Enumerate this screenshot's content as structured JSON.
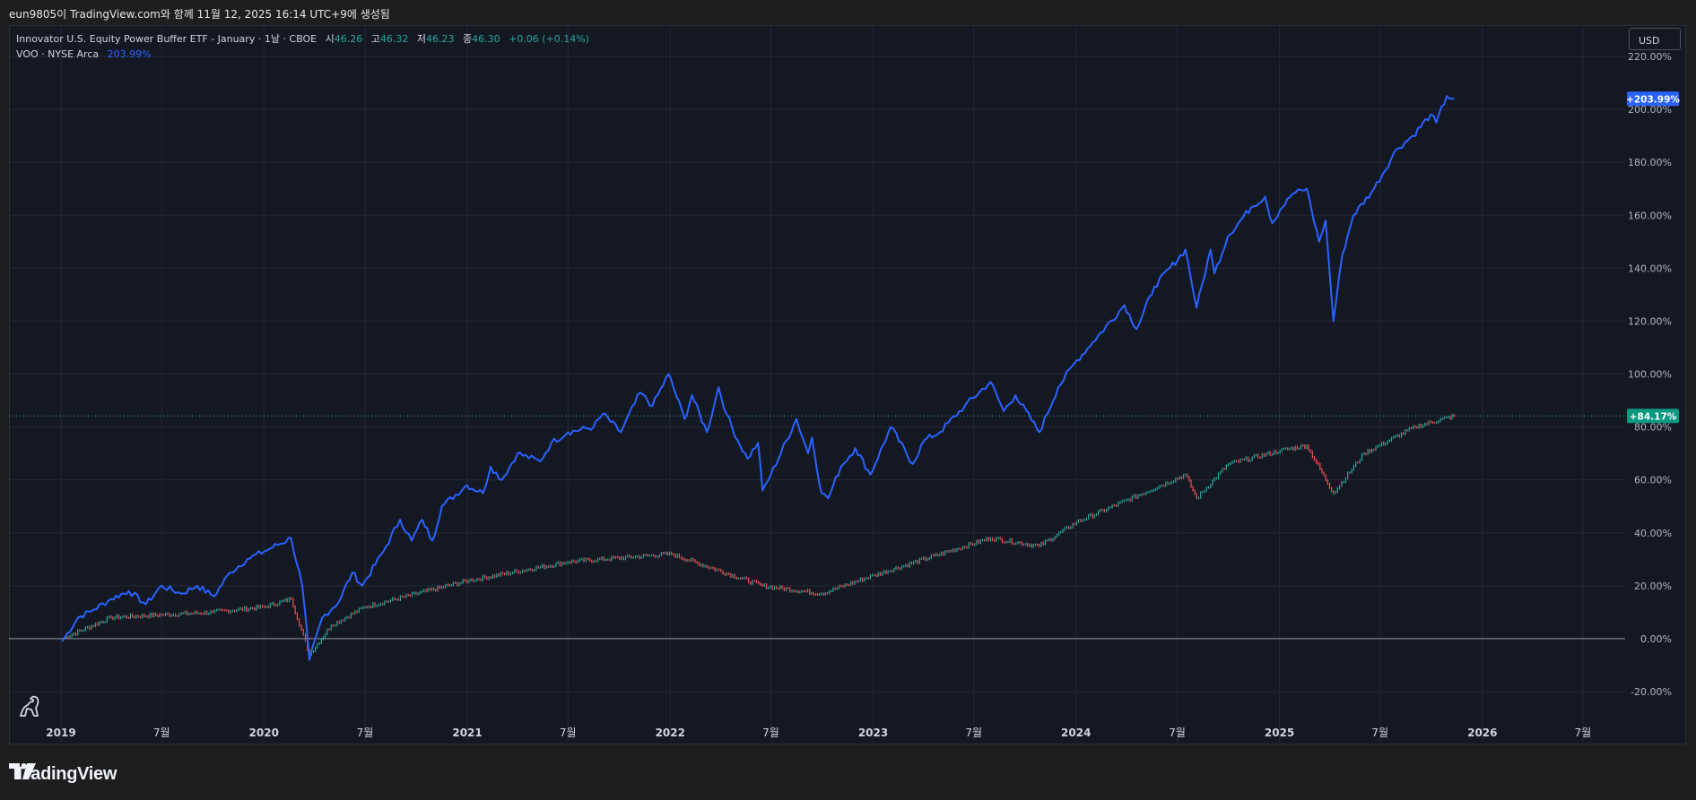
{
  "header": {
    "text": "eun9805이 TradingView.com와 함께 11월 12, 2025 16:14 UTC+9에 생성됨"
  },
  "legend": {
    "main_name": "Innovator U.S. Equity Power Buffer ETF - January · 1날 · CBOE",
    "o_label": "시",
    "o_value": "46.26",
    "h_label": "고",
    "h_value": "46.32",
    "l_label": "저",
    "l_value": "46.23",
    "c_label": "종",
    "c_value": "46.30",
    "change": "+0.06 (+0.14%)",
    "compare_name": "VOO · NYSE Arca",
    "compare_value": "203.99%"
  },
  "currency_button": "USD",
  "brand": "TradingView",
  "icons": {
    "brand_logo": "tradingview-logo-icon",
    "mascot": "dinosaur-icon"
  },
  "colors": {
    "background": "#141823",
    "compare_line": "#2962ff",
    "up": "#26a69a",
    "down": "#ef5350",
    "grid": "#232734",
    "zero_line": "#9598a1"
  },
  "chart_data": {
    "type": "line",
    "y_unit": "%",
    "ylim": [
      -20,
      220
    ],
    "y_ticks": [
      "220.00%",
      "200.00%",
      "180.00%",
      "160.00%",
      "140.00%",
      "120.00%",
      "100.00%",
      "80.00%",
      "60.00%",
      "40.00%",
      "20.00%",
      "0.00%",
      "-20.00%"
    ],
    "x_ticks": [
      "2019",
      "7월",
      "2020",
      "7월",
      "2021",
      "7월",
      "2022",
      "7월",
      "2023",
      "7월",
      "2024",
      "7월",
      "2025",
      "7월",
      "2026",
      "7월"
    ],
    "x_tick_dates": [
      "2019-01-01",
      "2019-07-01",
      "2020-01-01",
      "2020-07-01",
      "2021-01-01",
      "2021-07-01",
      "2022-01-01",
      "2022-07-01",
      "2023-01-01",
      "2023-07-01",
      "2024-01-01",
      "2024-07-01",
      "2025-01-01",
      "2025-07-01",
      "2026-01-01",
      "2026-07-01"
    ],
    "grid": true,
    "price_labels": [
      "+203.99%",
      "+84.17%"
    ],
    "series": [
      {
        "name": "VOO · NYSE Arca",
        "style": "line",
        "color": "#2962ff",
        "points": [
          [
            "2019-01-03",
            -1
          ],
          [
            "2019-02-01",
            8
          ],
          [
            "2019-03-01",
            11
          ],
          [
            "2019-04-01",
            15
          ],
          [
            "2019-05-03",
            18
          ],
          [
            "2019-06-03",
            13
          ],
          [
            "2019-07-01",
            20
          ],
          [
            "2019-08-05",
            17
          ],
          [
            "2019-09-03",
            20
          ],
          [
            "2019-10-03",
            16
          ],
          [
            "2019-11-01",
            25
          ],
          [
            "2019-12-02",
            30
          ],
          [
            "2020-01-02",
            33
          ],
          [
            "2020-02-19",
            38
          ],
          [
            "2020-03-10",
            20
          ],
          [
            "2020-03-23",
            -8
          ],
          [
            "2020-04-15",
            8
          ],
          [
            "2020-05-15",
            14
          ],
          [
            "2020-06-08",
            25
          ],
          [
            "2020-06-26",
            20
          ],
          [
            "2020-08-03",
            33
          ],
          [
            "2020-09-02",
            45
          ],
          [
            "2020-09-23",
            37
          ],
          [
            "2020-10-12",
            45
          ],
          [
            "2020-10-30",
            37
          ],
          [
            "2020-11-16",
            50
          ],
          [
            "2020-12-31",
            58
          ],
          [
            "2021-01-29",
            55
          ],
          [
            "2021-02-12",
            65
          ],
          [
            "2021-03-04",
            60
          ],
          [
            "2021-04-01",
            70
          ],
          [
            "2021-05-12",
            67
          ],
          [
            "2021-06-01",
            74
          ],
          [
            "2021-07-01",
            78
          ],
          [
            "2021-08-16",
            80
          ],
          [
            "2021-09-02",
            85
          ],
          [
            "2021-10-04",
            78
          ],
          [
            "2021-11-08",
            93
          ],
          [
            "2021-11-30",
            88
          ],
          [
            "2021-12-29",
            100
          ],
          [
            "2022-01-27",
            83
          ],
          [
            "2022-02-09",
            92
          ],
          [
            "2022-03-08",
            78
          ],
          [
            "2022-03-29",
            95
          ],
          [
            "2022-04-12",
            85
          ],
          [
            "2022-05-02",
            75
          ],
          [
            "2022-05-20",
            68
          ],
          [
            "2022-06-08",
            74
          ],
          [
            "2022-06-16",
            56
          ],
          [
            "2022-07-01",
            62
          ],
          [
            "2022-08-16",
            83
          ],
          [
            "2022-09-06",
            70
          ],
          [
            "2022-09-13",
            76
          ],
          [
            "2022-09-30",
            55
          ],
          [
            "2022-10-12",
            53
          ],
          [
            "2022-11-04",
            65
          ],
          [
            "2022-11-30",
            72
          ],
          [
            "2022-12-27",
            62
          ],
          [
            "2023-02-02",
            80
          ],
          [
            "2023-03-13",
            66
          ],
          [
            "2023-04-03",
            75
          ],
          [
            "2023-05-01",
            78
          ],
          [
            "2023-06-15",
            88
          ],
          [
            "2023-07-31",
            97
          ],
          [
            "2023-08-24",
            86
          ],
          [
            "2023-09-14",
            92
          ],
          [
            "2023-10-27",
            78
          ],
          [
            "2023-11-30",
            95
          ],
          [
            "2023-12-29",
            104
          ],
          [
            "2024-01-31",
            112
          ],
          [
            "2024-03-28",
            126
          ],
          [
            "2024-04-19",
            117
          ],
          [
            "2024-05-21",
            133
          ],
          [
            "2024-07-16",
            147
          ],
          [
            "2024-08-05",
            125
          ],
          [
            "2024-08-30",
            147
          ],
          [
            "2024-09-06",
            138
          ],
          [
            "2024-09-30",
            152
          ],
          [
            "2024-11-11",
            163
          ],
          [
            "2024-12-06",
            167
          ],
          [
            "2024-12-19",
            157
          ],
          [
            "2025-01-02",
            162
          ],
          [
            "2025-01-24",
            168
          ],
          [
            "2025-02-19",
            170
          ],
          [
            "2025-03-13",
            150
          ],
          [
            "2025-03-25",
            158
          ],
          [
            "2025-04-08",
            120
          ],
          [
            "2025-04-24",
            145
          ],
          [
            "2025-05-14",
            160
          ],
          [
            "2025-06-20",
            170
          ],
          [
            "2025-07-31",
            185
          ],
          [
            "2025-08-29",
            190
          ],
          [
            "2025-09-30",
            198
          ],
          [
            "2025-10-10",
            195
          ],
          [
            "2025-10-29",
            205
          ],
          [
            "2025-11-11",
            203.99
          ]
        ]
      },
      {
        "name": "Innovator U.S. Equity Power Buffer ETF - January",
        "style": "candles",
        "color": "#26a69a",
        "points": [
          [
            "2019-01-03",
            0
          ],
          [
            "2019-04-01",
            8
          ],
          [
            "2019-07-01",
            9
          ],
          [
            "2019-10-01",
            10
          ],
          [
            "2020-01-02",
            12
          ],
          [
            "2020-02-19",
            15
          ],
          [
            "2020-03-23",
            -6
          ],
          [
            "2020-05-01",
            5
          ],
          [
            "2020-07-01",
            12
          ],
          [
            "2021-01-04",
            22
          ],
          [
            "2021-07-01",
            29
          ],
          [
            "2022-01-03",
            32
          ],
          [
            "2022-06-16",
            20
          ],
          [
            "2022-09-30",
            17
          ],
          [
            "2023-01-03",
            24
          ],
          [
            "2023-07-31",
            38
          ],
          [
            "2023-10-27",
            35
          ],
          [
            "2024-01-02",
            44
          ],
          [
            "2024-07-16",
            62
          ],
          [
            "2024-08-05",
            53
          ],
          [
            "2024-10-01",
            66
          ],
          [
            "2025-01-02",
            71
          ],
          [
            "2025-02-19",
            73
          ],
          [
            "2025-04-08",
            55
          ],
          [
            "2025-06-02",
            70
          ],
          [
            "2025-09-02",
            80
          ],
          [
            "2025-11-11",
            84.17
          ]
        ]
      }
    ]
  }
}
